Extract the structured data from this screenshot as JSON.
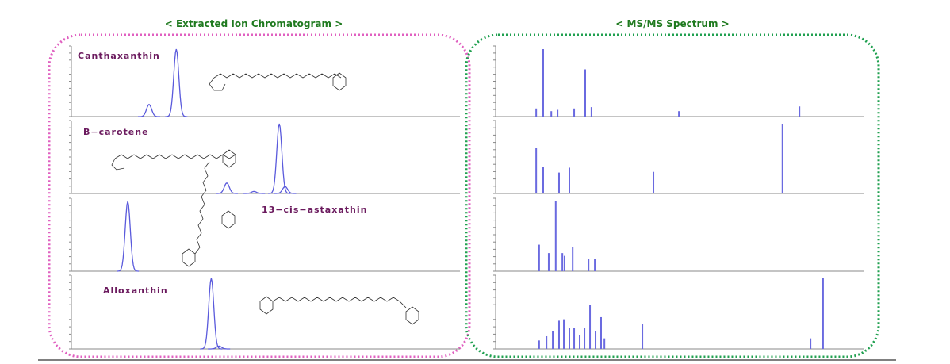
{
  "headers": {
    "left": "< Extracted Ion Chromatogram >",
    "right": "< MS/MS Spectrum >"
  },
  "chart_data": [
    {
      "type": "peak",
      "title": "Canthaxanthin",
      "color": "#5a5adc",
      "x": [
        20,
        27
      ],
      "values": [
        18,
        100
      ],
      "xlim": [
        0,
        100
      ],
      "ylim": [
        0,
        100
      ]
    },
    {
      "type": "peak",
      "title": "B−carotene",
      "color": "#5a5adc",
      "x": [
        40,
        47,
        53.5,
        55
      ],
      "values": [
        15,
        3,
        100,
        10
      ],
      "xlim": [
        0,
        100
      ],
      "ylim": [
        0,
        100
      ]
    },
    {
      "type": "peak",
      "title": "13−cis−astaxathin",
      "color": "#5a5adc",
      "x": [
        14.5
      ],
      "values": [
        100
      ],
      "xlim": [
        0,
        100
      ],
      "ylim": [
        0,
        100
      ]
    },
    {
      "type": "peak",
      "title": "Alloxanthin",
      "color": "#5a5adc",
      "x": [
        36,
        38
      ],
      "values": [
        100,
        4
      ],
      "xlim": [
        0,
        100
      ],
      "ylim": [
        0,
        100
      ]
    },
    {
      "type": "bar",
      "color": "#6a6ae0",
      "x": [
        11.0,
        12.9,
        15.1,
        16.8,
        21.3,
        24.3,
        26.0,
        49.7,
        82.4
      ],
      "values": [
        12,
        100,
        8,
        10,
        12,
        70,
        14,
        8,
        15
      ],
      "xlim": [
        0,
        100
      ],
      "ylim": [
        0,
        100
      ]
    },
    {
      "type": "bar",
      "color": "#6a6ae0",
      "x": [
        11.0,
        12.9,
        17.2,
        20.0,
        42.8,
        77.8
      ],
      "values": [
        65,
        38,
        30,
        37,
        31,
        100
      ],
      "xlim": [
        0,
        100
      ],
      "ylim": [
        0,
        100
      ]
    },
    {
      "type": "bar",
      "color": "#6a6ae0",
      "x": [
        11.8,
        14.4,
        16.3,
        18.1,
        18.7,
        20.9,
        25.2,
        26.9
      ],
      "values": [
        38,
        26,
        100,
        26,
        22,
        35,
        18,
        18
      ],
      "xlim": [
        0,
        100
      ],
      "ylim": [
        0,
        100
      ]
    },
    {
      "type": "bar",
      "color": "#6a6ae0",
      "x": [
        11.8,
        13.8,
        15.5,
        17.2,
        18.5,
        20.0,
        21.3,
        22.8,
        24.1,
        25.6,
        27.1,
        28.6,
        29.5,
        39.8,
        85.4,
        88.8
      ],
      "values": [
        12,
        18,
        25,
        40,
        42,
        30,
        30,
        20,
        30,
        62,
        25,
        45,
        15,
        35,
        15,
        100
      ],
      "xlim": [
        0,
        100
      ],
      "ylim": [
        0,
        100
      ]
    }
  ]
}
